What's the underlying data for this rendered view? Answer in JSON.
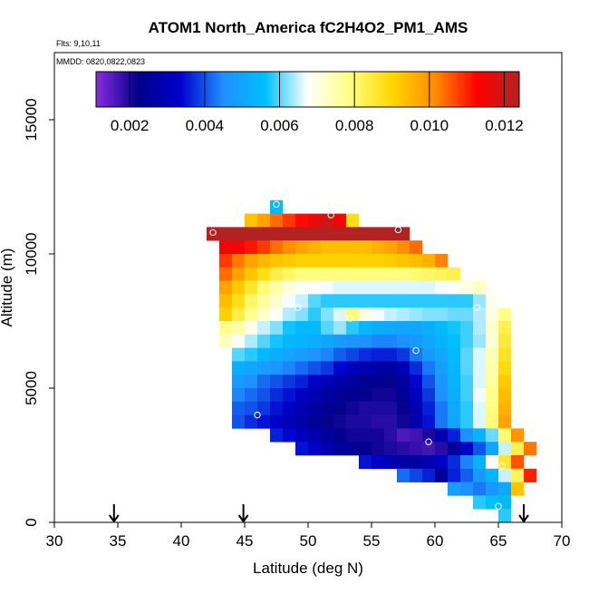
{
  "chart_data": {
    "type": "heatmap",
    "title": "ATOM1 North_America fC2H4O2_PM1_AMS",
    "flights_label": "Flts: 9,10,11",
    "dates_label": "MMDD: 0820,0822,0823",
    "xlabel": "Latitude (deg N)",
    "ylabel": "Altitude (m)",
    "xlim": [
      30,
      70
    ],
    "ylim": [
      0,
      17500
    ],
    "xticks": [
      "30",
      "35",
      "40",
      "45",
      "50",
      "55",
      "60",
      "65",
      "70"
    ],
    "yticks": [
      "0",
      "5000",
      "10000",
      "15000"
    ],
    "colorbar": {
      "range": [
        0.0011,
        0.0124
      ],
      "ticks": [
        "0.002",
        "0.004",
        "0.006",
        "0.008",
        "0.010",
        "0.012"
      ],
      "tick_values": [
        0.002,
        0.004,
        0.006,
        0.008,
        0.01,
        0.012
      ],
      "stops": [
        "#8a2be2",
        "#00008b",
        "#0000cd",
        "#1e90ff",
        "#00bfff",
        "#ffffff",
        "#ffff80",
        "#ffd700",
        "#ff8c00",
        "#ff0000",
        "#b22222"
      ]
    },
    "cell_size": {
      "lat": 1.0,
      "alt": 500
    },
    "rows": [
      {
        "alt": 11750,
        "lat0": 47,
        "values": [
          0.0055
        ]
      },
      {
        "alt": 11250,
        "lat0": 45,
        "values": [
          0.0093,
          0.0098,
          0.0104,
          0.0108,
          0.0112,
          0.0116,
          0.0119,
          0.0114,
          0.0088
        ]
      },
      {
        "alt": 10750,
        "lat0": 42,
        "values": [
          0.0124,
          0.0124,
          0.0124,
          0.0124,
          0.0124,
          0.0124,
          0.0124,
          0.0124,
          0.0124,
          0.0124,
          0.0124,
          0.0124,
          0.0124,
          0.0124,
          0.0124,
          0.0124
        ]
      },
      {
        "alt": 10250,
        "lat0": 43,
        "values": [
          0.0116,
          0.0114,
          0.0111,
          0.0108,
          0.0104,
          0.0101,
          0.0098,
          0.0096,
          0.0094,
          0.0094,
          0.0094,
          0.0094,
          0.0096,
          0.0098,
          0.0101,
          0.0104
        ]
      },
      {
        "alt": 9750,
        "lat0": 43,
        "values": [
          0.0108,
          0.0103,
          0.0098,
          0.0095,
          0.0093,
          0.0092,
          0.0091,
          0.0091,
          0.0091,
          0.0091,
          0.0091,
          0.0091,
          0.0091,
          0.0092,
          0.0093,
          0.0094,
          0.0096,
          0.0102
        ]
      },
      {
        "alt": 9250,
        "lat0": 43,
        "values": [
          0.0104,
          0.0098,
          0.0093,
          0.0088,
          0.0084,
          0.0081,
          0.0079,
          0.0079,
          0.0079,
          0.0079,
          0.0079,
          0.0079,
          0.0079,
          0.0079,
          0.0079,
          0.008,
          0.0081,
          0.0082,
          0.0083
        ]
      },
      {
        "alt": 8750,
        "lat0": 43,
        "values": [
          0.0098,
          0.0092,
          0.0086,
          0.008,
          0.0075,
          0.0071,
          0.0068,
          0.0068,
          0.0067,
          0.0066,
          0.0066,
          0.0066,
          0.0066,
          0.0066,
          0.0066,
          0.0066,
          0.0066,
          0.0067,
          0.0068,
          0.007,
          0.0073
        ]
      },
      {
        "alt": 8250,
        "lat0": 43,
        "values": [
          0.0094,
          0.0088,
          0.0081,
          0.0076,
          0.0072,
          0.0067,
          0.0065,
          0.006,
          0.0058,
          0.0058,
          0.0058,
          0.0058,
          0.0058,
          0.0058,
          0.0058,
          0.0058,
          0.0058,
          0.0058,
          0.0058,
          0.0058,
          0.0063,
          0.0069
        ]
      },
      {
        "alt": 7750,
        "lat0": 43,
        "values": [
          0.0091,
          0.0084,
          0.0078,
          0.0072,
          0.0068,
          0.0064,
          0.0062,
          0.0058,
          0.0062,
          0.0066,
          0.008,
          0.007,
          0.0067,
          0.0065,
          0.0064,
          0.0063,
          0.0062,
          0.0062,
          0.0061,
          0.0061,
          0.0064,
          0.007,
          0.0078
        ]
      },
      {
        "alt": 7250,
        "lat0": 43,
        "values": [
          0.0078,
          0.0075,
          0.0069,
          0.0065,
          0.0062,
          0.0057,
          0.0055,
          0.0055,
          0.006,
          0.0063,
          0.0058,
          0.0054,
          0.0052,
          0.0051,
          0.005,
          0.005,
          0.0052,
          0.0055,
          0.0057,
          0.0059,
          0.0064,
          0.0072,
          0.0083
        ]
      },
      {
        "alt": 6750,
        "lat0": 43,
        "values": [
          0.0073,
          0.0068,
          0.0064,
          0.006,
          0.0057,
          0.0054,
          0.0053,
          0.0052,
          0.005,
          0.0048,
          0.0046,
          0.0045,
          0.0044,
          0.0044,
          0.0045,
          0.0047,
          0.005,
          0.0053,
          0.0056,
          0.0059,
          0.0063,
          0.0071,
          0.0085
        ]
      },
      {
        "alt": 6250,
        "lat0": 44,
        "values": [
          0.006,
          0.0058,
          0.0055,
          0.0052,
          0.005,
          0.0048,
          0.0046,
          0.0044,
          0.0041,
          0.0039,
          0.0037,
          0.0036,
          0.0036,
          0.0038,
          0.0043,
          0.0047,
          0.0051,
          0.0055,
          0.006,
          0.0066,
          0.0074,
          0.0087
        ]
      },
      {
        "alt": 5750,
        "lat0": 44,
        "values": [
          0.0052,
          0.005,
          0.0048,
          0.0046,
          0.0044,
          0.0042,
          0.004,
          0.0038,
          0.0034,
          0.0031,
          0.0029,
          0.0027,
          0.0026,
          0.003,
          0.0037,
          0.0043,
          0.0048,
          0.0054,
          0.006,
          0.0066,
          0.0075,
          0.0089
        ]
      },
      {
        "alt": 5250,
        "lat0": 44,
        "values": [
          0.0047,
          0.0045,
          0.0042,
          0.004,
          0.0038,
          0.0036,
          0.0033,
          0.003,
          0.0027,
          0.0025,
          0.0024,
          0.0023,
          0.0022,
          0.0026,
          0.0034,
          0.004,
          0.0046,
          0.0053,
          0.0059,
          0.0066,
          0.0076,
          0.0092
        ]
      },
      {
        "alt": 4750,
        "lat0": 44,
        "values": [
          0.0044,
          0.0042,
          0.004,
          0.0037,
          0.0035,
          0.0032,
          0.0029,
          0.0026,
          0.0024,
          0.0023,
          0.0022,
          0.0021,
          0.0021,
          0.0024,
          0.0031,
          0.0038,
          0.0045,
          0.0052,
          0.0059,
          0.0067,
          0.0078,
          0.0094
        ]
      },
      {
        "alt": 4250,
        "lat0": 44,
        "values": [
          0.0041,
          0.004,
          0.0038,
          0.0035,
          0.0032,
          0.0029,
          0.0026,
          0.0024,
          0.0022,
          0.0021,
          0.002,
          0.002,
          0.002,
          0.0022,
          0.0029,
          0.0036,
          0.0043,
          0.0051,
          0.0058,
          0.0066,
          0.0079,
          0.0096
        ]
      },
      {
        "alt": 3750,
        "lat0": 44,
        "values": [
          0.004,
          0.0037,
          0.0035,
          0.0033,
          0.003,
          0.0027,
          0.0024,
          0.0022,
          0.0021,
          0.002,
          0.002,
          0.0019,
          0.0019,
          0.0021,
          0.0028,
          0.0035,
          0.0043,
          0.005,
          0.0058,
          0.0066,
          0.008,
          0.0098
        ]
      },
      {
        "alt": 3250,
        "lat0": 47,
        "values": [
          0.0036,
          0.0034,
          0.0031,
          0.0028,
          0.0025,
          0.0023,
          0.0021,
          0.0021,
          0.0021,
          0.0019,
          0.0016,
          0.0017,
          0.002,
          0.0028,
          0.0036,
          0.0045,
          0.0053,
          0.0061,
          0.008,
          0.01
        ]
      },
      {
        "alt": 2750,
        "lat0": 49,
        "values": [
          0.0035,
          0.0032,
          0.0029,
          0.0026,
          0.0024,
          0.0022,
          0.0021,
          0.002,
          0.0019,
          0.0018,
          0.0017,
          0.0019,
          0.0025,
          0.0032,
          0.004,
          0.005,
          0.0065,
          0.0083,
          0.0103
        ]
      },
      {
        "alt": 2250,
        "lat0": 54,
        "values": [
          0.0035,
          0.0032,
          0.0029,
          0.0027,
          0.0026,
          0.0028,
          0.0032,
          0.0037,
          0.0044,
          0.0053,
          0.0068,
          0.0086,
          0.0106
        ]
      },
      {
        "alt": 1750,
        "lat0": 57,
        "values": [
          0.0042,
          0.0039,
          0.0036,
          0.0024,
          0.0036,
          0.0041,
          0.0047,
          0.0054,
          0.0065,
          0.0082,
          0.011
        ]
      },
      {
        "alt": 1250,
        "lat0": 61,
        "values": [
          0.0048,
          0.0045,
          0.0043,
          0.0046,
          0.0051,
          0.0093
        ]
      },
      {
        "alt": 750,
        "lat0": 63,
        "values": [
          0.0058,
          0.0056,
          0.0054
        ]
      },
      {
        "alt": 250,
        "lat0": 65,
        "values": [
          0.0058
        ]
      }
    ],
    "points": [
      {
        "lat": 42.5,
        "alt": 10800
      },
      {
        "lat": 46.0,
        "alt": 4000
      },
      {
        "lat": 47.5,
        "alt": 11850
      },
      {
        "lat": 49.2,
        "alt": 8000
      },
      {
        "lat": 51.8,
        "alt": 11450
      },
      {
        "lat": 53.3,
        "alt": 7600
      },
      {
        "lat": 57.1,
        "alt": 10900
      },
      {
        "lat": 58.5,
        "alt": 6400
      },
      {
        "lat": 59.5,
        "alt": 3000
      },
      {
        "lat": 63.3,
        "alt": 8000
      },
      {
        "lat": 65.3,
        "alt": 2100
      },
      {
        "lat": 65.0,
        "alt": 600
      }
    ],
    "arrows_lat": [
      34.7,
      44.9,
      67.0
    ]
  }
}
